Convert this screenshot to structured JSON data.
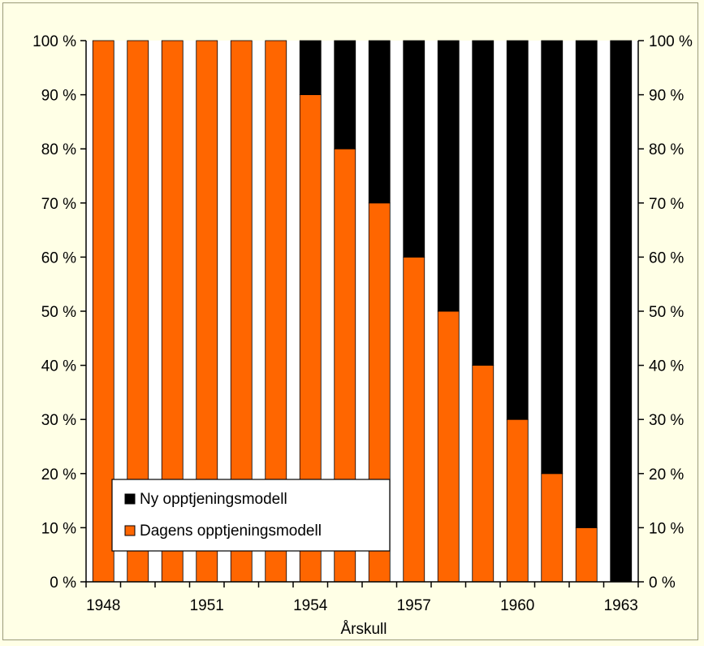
{
  "chart_data": {
    "type": "bar",
    "stacked": true,
    "percent_stacked": true,
    "categories": [
      "1948",
      "1949",
      "1950",
      "1951",
      "1952",
      "1953",
      "1954",
      "1955",
      "1956",
      "1957",
      "1958",
      "1959",
      "1960",
      "1961",
      "1962",
      "1963"
    ],
    "series": [
      {
        "name": "Dagens opptjeningsmodell",
        "color": "#ff6600",
        "values": [
          100,
          100,
          100,
          100,
          100,
          100,
          90,
          80,
          70,
          60,
          50,
          40,
          30,
          20,
          10,
          0
        ]
      },
      {
        "name": "Ny opptjeningsmodell",
        "color": "#000000",
        "values": [
          0,
          0,
          0,
          0,
          0,
          0,
          10,
          20,
          30,
          40,
          50,
          60,
          70,
          80,
          90,
          100
        ]
      }
    ],
    "x_tick_labels": [
      "1948",
      "1951",
      "1954",
      "1957",
      "1960",
      "1963"
    ],
    "y_tick_labels": [
      "0 %",
      "10 %",
      "20 %",
      "30 %",
      "40 %",
      "50 %",
      "60 %",
      "70 %",
      "80 %",
      "90 %",
      "100 %"
    ],
    "xlabel": "Årskull",
    "ylabel": "",
    "ylim": [
      0,
      100
    ],
    "secondary_y_axis": true,
    "grid": false,
    "legend_position": "bottom-left",
    "legend_entries": [
      "Ny opptjeningsmodell",
      "Dagens opptjeningsmodell"
    ]
  }
}
